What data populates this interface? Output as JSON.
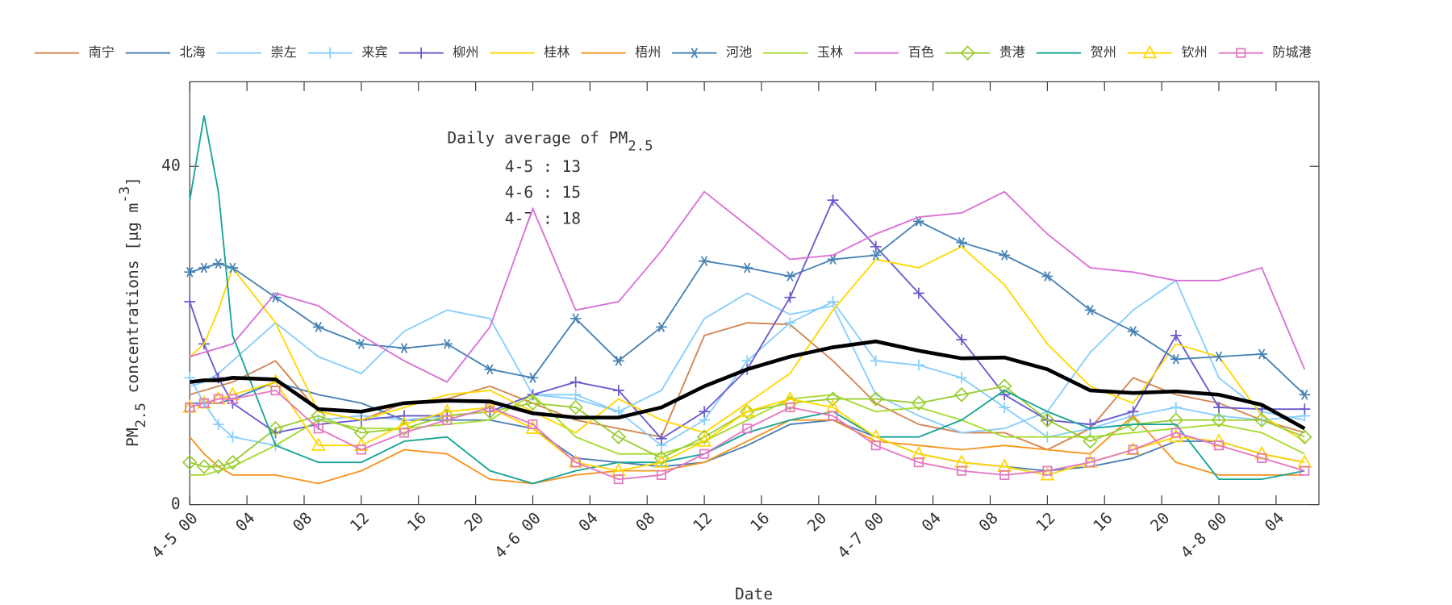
{
  "chart_data": {
    "type": "line",
    "xlabel": "Date",
    "ylabel": [
      {
        "text": "PM"
      },
      {
        "text": "2.5",
        "shift": "sub"
      },
      {
        "text": " concentrations [μg m"
      },
      {
        "text": "-3",
        "shift": "super"
      },
      {
        "text": "]"
      }
    ],
    "annotation": {
      "title": "Daily average of PM",
      "title_sub": "2.5",
      "lines": [
        "4-5 : 13",
        "4-6 : 15",
        "4-7 : 18"
      ]
    },
    "xlim": [
      0,
      79
    ],
    "ylim": [
      0,
      50
    ],
    "yticks": [
      0,
      40
    ],
    "xticks": [
      {
        "value": 0,
        "label": "4-5 00"
      },
      {
        "value": 4,
        "label": "04"
      },
      {
        "value": 8,
        "label": "08"
      },
      {
        "value": 12,
        "label": "12"
      },
      {
        "value": 16,
        "label": "16"
      },
      {
        "value": 20,
        "label": "20"
      },
      {
        "value": 24,
        "label": "4-6 00"
      },
      {
        "value": 28,
        "label": "04"
      },
      {
        "value": 32,
        "label": "08"
      },
      {
        "value": 36,
        "label": "12"
      },
      {
        "value": 40,
        "label": "16"
      },
      {
        "value": 44,
        "label": "20"
      },
      {
        "value": 48,
        "label": "4-7 00"
      },
      {
        "value": 52,
        "label": "04"
      },
      {
        "value": 56,
        "label": "08"
      },
      {
        "value": 60,
        "label": "12"
      },
      {
        "value": 64,
        "label": "16"
      },
      {
        "value": 68,
        "label": "20"
      },
      {
        "value": 72,
        "label": "4-8 00"
      },
      {
        "value": 76,
        "label": "04"
      }
    ],
    "x": [
      0,
      1,
      2,
      3,
      6,
      9,
      12,
      15,
      18,
      21,
      24,
      27,
      30,
      33,
      36,
      39,
      42,
      45,
      48,
      51,
      54,
      57,
      60,
      63,
      66,
      69,
      72,
      75,
      78
    ],
    "average_line": {
      "color": "#000000",
      "values": [
        14.5,
        14.7,
        14.7,
        15,
        14.8,
        11.3,
        11,
        12,
        12.3,
        12.2,
        10.8,
        10.3,
        10.3,
        11.5,
        14,
        16,
        17.5,
        18.6,
        19.3,
        18.2,
        17.3,
        17.4,
        16,
        13.5,
        13.2,
        13.4,
        13,
        11.8,
        9
      ]
    },
    "series": [
      {
        "name": "南宁",
        "color": "#d2844e",
        "marker": "none",
        "values": [
          13,
          13.5,
          14,
          14.5,
          17,
          11,
          10,
          12,
          12.5,
          14,
          12,
          10,
          9,
          8,
          20,
          21.5,
          21.3,
          17,
          12,
          9.5,
          8.5,
          8.5,
          6.5,
          9,
          15,
          13,
          12,
          10,
          8.5
        ]
      },
      {
        "name": "北海",
        "color": "#4a7db5",
        "marker": "none",
        "values": [
          12,
          12,
          12,
          12.5,
          14.5,
          13,
          12,
          10,
          10,
          10,
          9,
          5.5,
          5,
          4.5,
          5,
          7,
          9.5,
          10,
          8,
          6,
          5,
          4.5,
          4,
          4.5,
          5.5,
          7.5,
          7.5,
          6,
          5
        ]
      },
      {
        "name": "崇左",
        "color": "#87cefa",
        "marker": "none",
        "values": [
          14,
          14.5,
          15.5,
          17,
          21.5,
          17.5,
          15.5,
          20.5,
          23,
          22,
          13,
          12.5,
          11,
          13.5,
          22,
          25,
          22.5,
          23.5,
          13,
          10.5,
          8.5,
          9,
          11,
          18,
          23,
          26.5,
          15,
          11,
          10
        ]
      },
      {
        "name": "来宾",
        "color": "#87cefa",
        "marker": "plus",
        "values": [
          15,
          12,
          9.5,
          8,
          7,
          10,
          10.5,
          10,
          10.5,
          11,
          13,
          13,
          11,
          7,
          10,
          17,
          21.5,
          24,
          17,
          16.5,
          15,
          11.5,
          8,
          9,
          10.5,
          11.5,
          10.5,
          10,
          10.5
        ]
      },
      {
        "name": "柳州",
        "color": "#6a5acd",
        "marker": "plus",
        "values": [
          24,
          19,
          15,
          12,
          8.5,
          9.5,
          10,
          10.5,
          10.5,
          11,
          13,
          14.5,
          13.5,
          7.8,
          11,
          16,
          24.5,
          36,
          30.5,
          25,
          19.5,
          13,
          10,
          9.5,
          11,
          20,
          11.5,
          11.3,
          11.3
        ]
      },
      {
        "name": "桂林",
        "color": "#ffd700",
        "marker": "none",
        "values": [
          17.5,
          19,
          23,
          28,
          21.5,
          11,
          10,
          11.5,
          13,
          13.5,
          11,
          8.5,
          12.5,
          10,
          8.5,
          12,
          15.5,
          23,
          29,
          28,
          30.5,
          26,
          19,
          14,
          12,
          19,
          17.5,
          10.5,
          7.5
        ]
      },
      {
        "name": "梧州",
        "color": "#f7941d",
        "marker": "none",
        "values": [
          8,
          6,
          4.5,
          3.5,
          3.5,
          2.5,
          4,
          6.5,
          6,
          3,
          2.5,
          3.5,
          4,
          4,
          5,
          7.5,
          10,
          10,
          7.5,
          7,
          6.5,
          7,
          6.5,
          6,
          10.5,
          5,
          3.5,
          3.5,
          3.5
        ]
      },
      {
        "name": "河池",
        "color": "#4682b4",
        "marker": "star",
        "values": [
          27.5,
          28,
          28.5,
          28,
          24.5,
          21,
          19,
          18.5,
          19,
          16,
          15,
          22,
          17,
          21,
          28.8,
          28,
          27,
          29,
          29.5,
          33.5,
          31,
          29.5,
          27,
          23,
          20.5,
          17.2,
          17.5,
          17.8,
          13
        ]
      },
      {
        "name": "玉林",
        "color": "#a6dc2e",
        "marker": "none",
        "values": [
          3.5,
          3.5,
          4,
          4.5,
          7,
          10,
          9,
          9,
          9.5,
          10,
          13,
          8,
          6,
          6,
          7.5,
          10,
          12.5,
          13,
          11,
          11.5,
          10,
          8,
          8,
          8,
          8.5,
          9,
          9.5,
          8.5,
          6
        ]
      },
      {
        "name": "百色",
        "color": "#da70d6",
        "marker": "none",
        "values": [
          17.5,
          18,
          18.5,
          19,
          25,
          23.5,
          20,
          17,
          14.5,
          21,
          35,
          23,
          24,
          30,
          37,
          33,
          29,
          29.5,
          32,
          34,
          34.5,
          37,
          32,
          28,
          27.5,
          26.5,
          26.5,
          28,
          16
        ]
      },
      {
        "name": "贵港",
        "color": "#9acd32",
        "marker": "diamond",
        "values": [
          5,
          4.5,
          4.5,
          5,
          9,
          10.5,
          8.5,
          9,
          10.5,
          11,
          12,
          11.5,
          8,
          5.5,
          8,
          11,
          12,
          12.5,
          12.5,
          12,
          13,
          14,
          10,
          7.5,
          9.5,
          10,
          10,
          10,
          8
        ]
      },
      {
        "name": "贺州",
        "color": "#17a398",
        "marker": "none",
        "values": [
          36,
          46,
          37,
          20,
          7,
          5,
          5,
          7.5,
          8,
          4,
          2.5,
          4,
          5,
          5,
          6,
          8.5,
          10,
          11,
          8,
          8,
          10,
          13.5,
          11,
          9,
          9.5,
          9.5,
          3,
          3,
          4
        ]
      },
      {
        "name": "钦州",
        "color": "#ffd700",
        "marker": "triangle",
        "values": [
          11.5,
          12,
          12.5,
          13,
          14.5,
          7,
          7,
          9.5,
          11,
          11.5,
          9,
          5,
          4,
          5,
          7.5,
          11,
          12.5,
          11.5,
          8,
          6,
          5,
          4.5,
          3.5,
          5,
          6.5,
          8,
          7.5,
          6,
          5
        ]
      },
      {
        "name": "防城港",
        "color": "#e377c2",
        "marker": "square",
        "values": [
          11.5,
          12,
          12.5,
          12.5,
          13.5,
          9,
          6.5,
          8.5,
          10,
          11.5,
          9.5,
          5,
          3,
          3.5,
          6,
          9,
          11.5,
          10.5,
          7,
          5,
          4,
          3.5,
          4,
          5,
          6.5,
          8.5,
          7,
          5.5,
          4
        ]
      }
    ]
  }
}
